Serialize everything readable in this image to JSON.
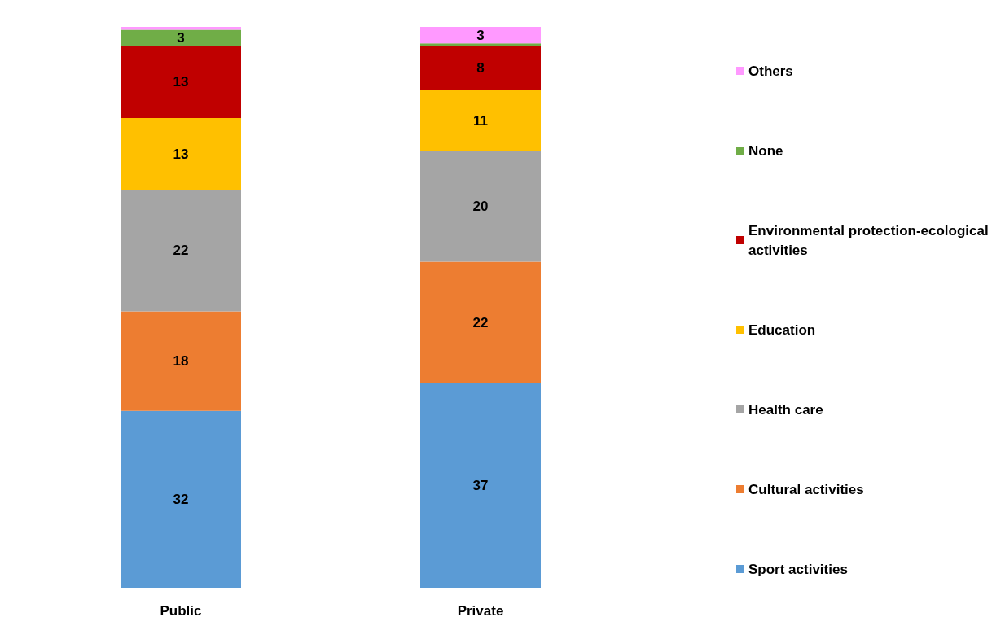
{
  "chart_data": {
    "type": "bar",
    "stacked": true,
    "categories": [
      "Public",
      "Private"
    ],
    "legend": "right",
    "series": [
      {
        "name": "Sport activities",
        "color": "#5b9bd5",
        "values": [
          32,
          37
        ],
        "value_labels": [
          "32",
          "37"
        ]
      },
      {
        "name": "Cultural activities",
        "color": "#ed7d31",
        "values": [
          18,
          22
        ],
        "value_labels": [
          "18",
          "22"
        ]
      },
      {
        "name": "Health care",
        "color": "#a5a5a5",
        "values": [
          22,
          20
        ],
        "value_labels": [
          "22",
          "20"
        ]
      },
      {
        "name": "Education",
        "color": "#ffc000",
        "values": [
          13,
          11
        ],
        "value_labels": [
          "13",
          "11"
        ]
      },
      {
        "name": "Environmental protection-ecological activities",
        "color": "#c00000",
        "values": [
          13,
          8
        ],
        "value_labels": [
          "13",
          "8"
        ]
      },
      {
        "name": "None",
        "color": "#70ad47",
        "values": [
          3,
          0.5
        ],
        "value_labels": [
          "3",
          null
        ]
      },
      {
        "name": "Others",
        "color": "#ff99ff",
        "values": [
          0.5,
          3
        ],
        "value_labels": [
          null,
          "3"
        ]
      }
    ]
  }
}
